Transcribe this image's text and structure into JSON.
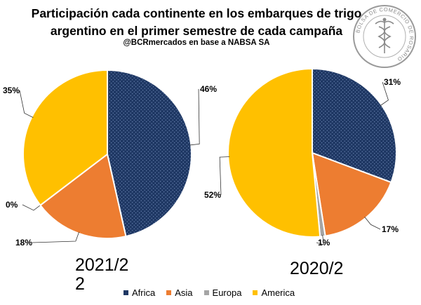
{
  "title_lines": [
    "Participación cada continente en los embarques de trigo",
    "argentino en el primer semestre de cada campaña"
  ],
  "subtitle": "@BCRmercados  en base a NABSA SA",
  "logo": {
    "text": "BOLSA DE COMERCIO DE ROSARIO",
    "icon": "caduceus-seal-icon"
  },
  "colors": {
    "Africa": "#1f3864",
    "Asia": "#ed7d31",
    "Europa": "#a5a5a5",
    "America": "#ffc000"
  },
  "chart_data": [
    {
      "type": "pie",
      "label_lines": [
        "2021/2",
        "2"
      ],
      "categories": [
        "Africa",
        "Asia",
        "Europa",
        "America"
      ],
      "values": [
        46,
        18,
        0,
        35
      ],
      "value_labels": [
        "46%",
        "18%",
        "0%",
        "35%"
      ]
    },
    {
      "type": "pie",
      "label_lines": [
        "2020/2"
      ],
      "categories": [
        "Africa",
        "Asia",
        "Europa",
        "America"
      ],
      "values": [
        31,
        17,
        1,
        52
      ],
      "value_labels": [
        "31%",
        "17%",
        "1%",
        "52%"
      ]
    }
  ],
  "legend": {
    "position": "bottom",
    "items": [
      "Africa",
      "Asia",
      "Europa",
      "America"
    ]
  }
}
